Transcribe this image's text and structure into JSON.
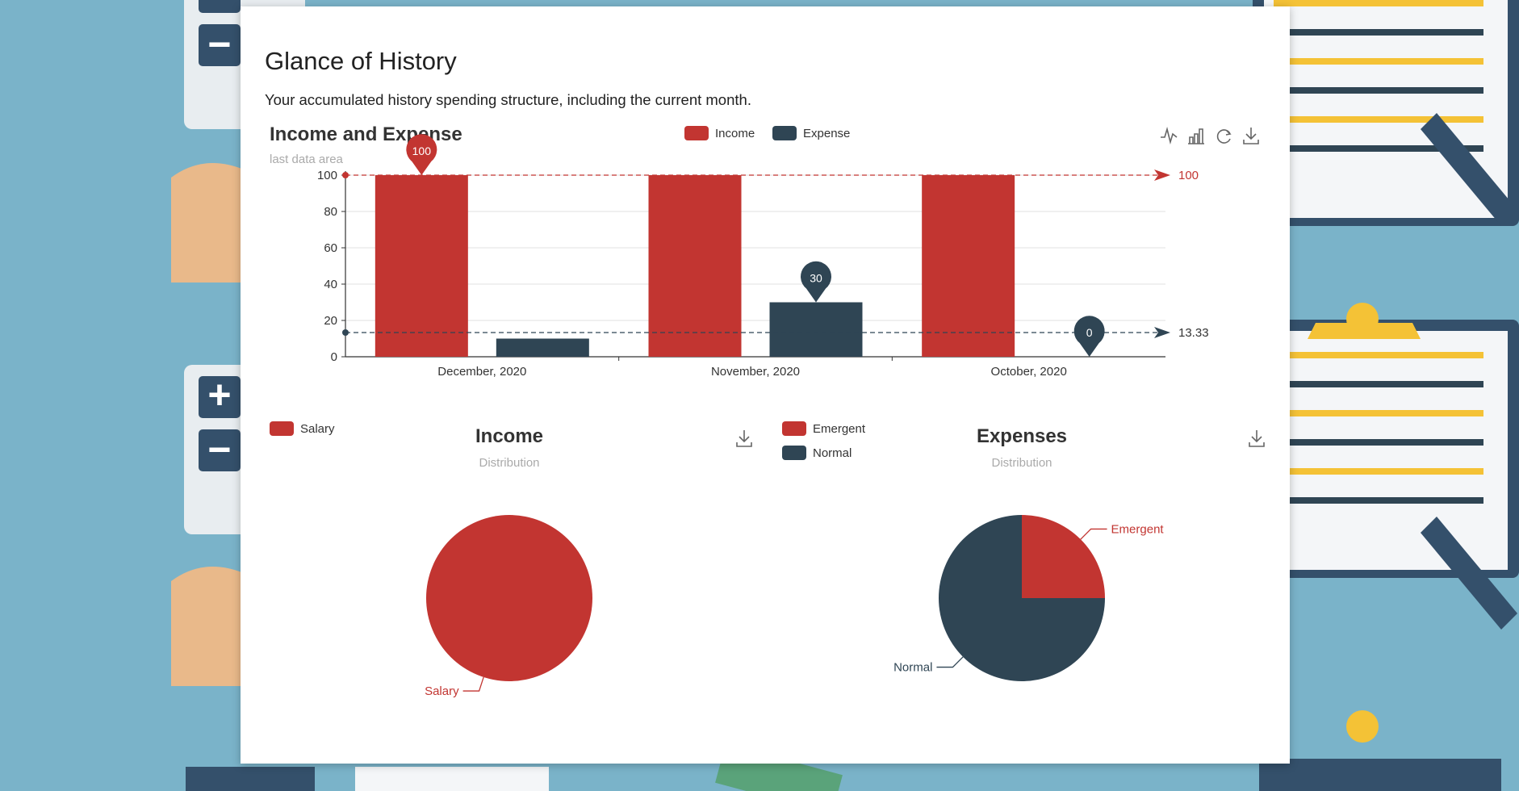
{
  "page": {
    "title": "Glance of History",
    "subtitle": "Your accumulated history spending structure, including the current month."
  },
  "colors": {
    "income": "#c23531",
    "expense": "#2f4554",
    "background": "#7ab3c9"
  },
  "chart_data": [
    {
      "type": "bar",
      "title": "Income and Expense",
      "subtitle": "last data area",
      "categories": [
        "December, 2020",
        "November, 2020",
        "October, 2020"
      ],
      "series": [
        {
          "name": "Income",
          "values": [
            100,
            100,
            100
          ],
          "max_marker": "100",
          "average_line": "100"
        },
        {
          "name": "Expense",
          "values": [
            10,
            30,
            0
          ],
          "max_marker": "30",
          "min_marker": "0",
          "average_line": "13.33"
        }
      ],
      "ylim": [
        0,
        100
      ],
      "yticks": [
        0,
        20,
        40,
        60,
        80,
        100
      ],
      "grid": true,
      "legend": "top-center",
      "toolbox": [
        "line-chart-icon",
        "bar-chart-icon",
        "restore-icon",
        "download-icon"
      ]
    },
    {
      "type": "pie",
      "title": "Income",
      "subtitle": "Distribution",
      "slices": [
        {
          "label": "Salary",
          "value": 100
        }
      ],
      "legend": "top-left"
    },
    {
      "type": "pie",
      "title": "Expenses",
      "subtitle": "Distribution",
      "slices": [
        {
          "label": "Emergent",
          "value": 25
        },
        {
          "label": "Normal",
          "value": 75
        }
      ],
      "legend": "top-left"
    }
  ]
}
